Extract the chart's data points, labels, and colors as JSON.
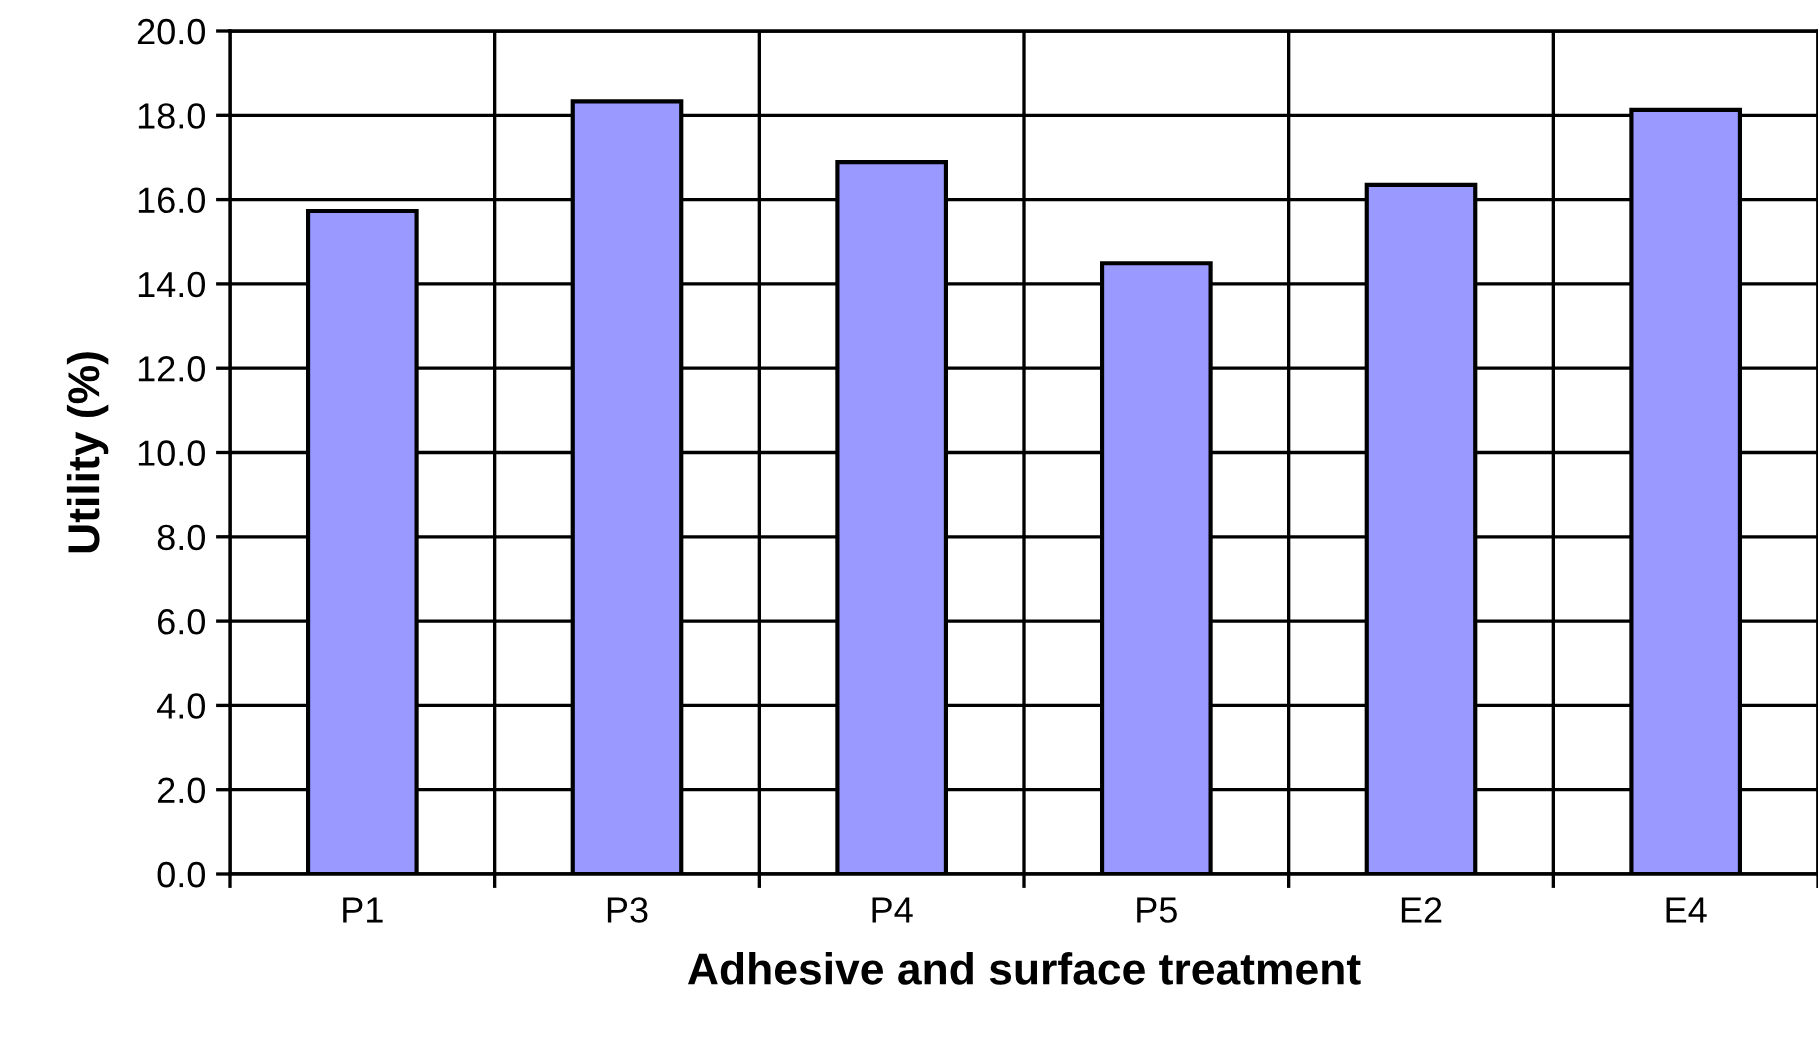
{
  "chart_data": {
    "type": "bar",
    "xlabel": "Adhesive and surface treatment",
    "ylabel": "Utility (%)",
    "categories": [
      "P1",
      "P3",
      "P4",
      "P5",
      "E2",
      "E4"
    ],
    "values": [
      15.73,
      18.33,
      16.89,
      14.49,
      16.35,
      18.13
    ],
    "color": "#9999ff",
    "ylim": [
      0,
      20
    ],
    "yticks": [
      {
        "value": 0,
        "label": "0.0"
      },
      {
        "value": 2,
        "label": "2.0"
      },
      {
        "value": 4,
        "label": "4.0"
      },
      {
        "value": 6,
        "label": "6.0"
      },
      {
        "value": 8,
        "label": "8.0"
      },
      {
        "value": 10,
        "label": "10.0"
      },
      {
        "value": 12,
        "label": "12.0"
      },
      {
        "value": 14,
        "label": "14.0"
      },
      {
        "value": 16,
        "label": "16.0"
      },
      {
        "value": 18,
        "label": "18.0"
      },
      {
        "value": 20,
        "label": "20.0"
      }
    ],
    "grid": true
  }
}
